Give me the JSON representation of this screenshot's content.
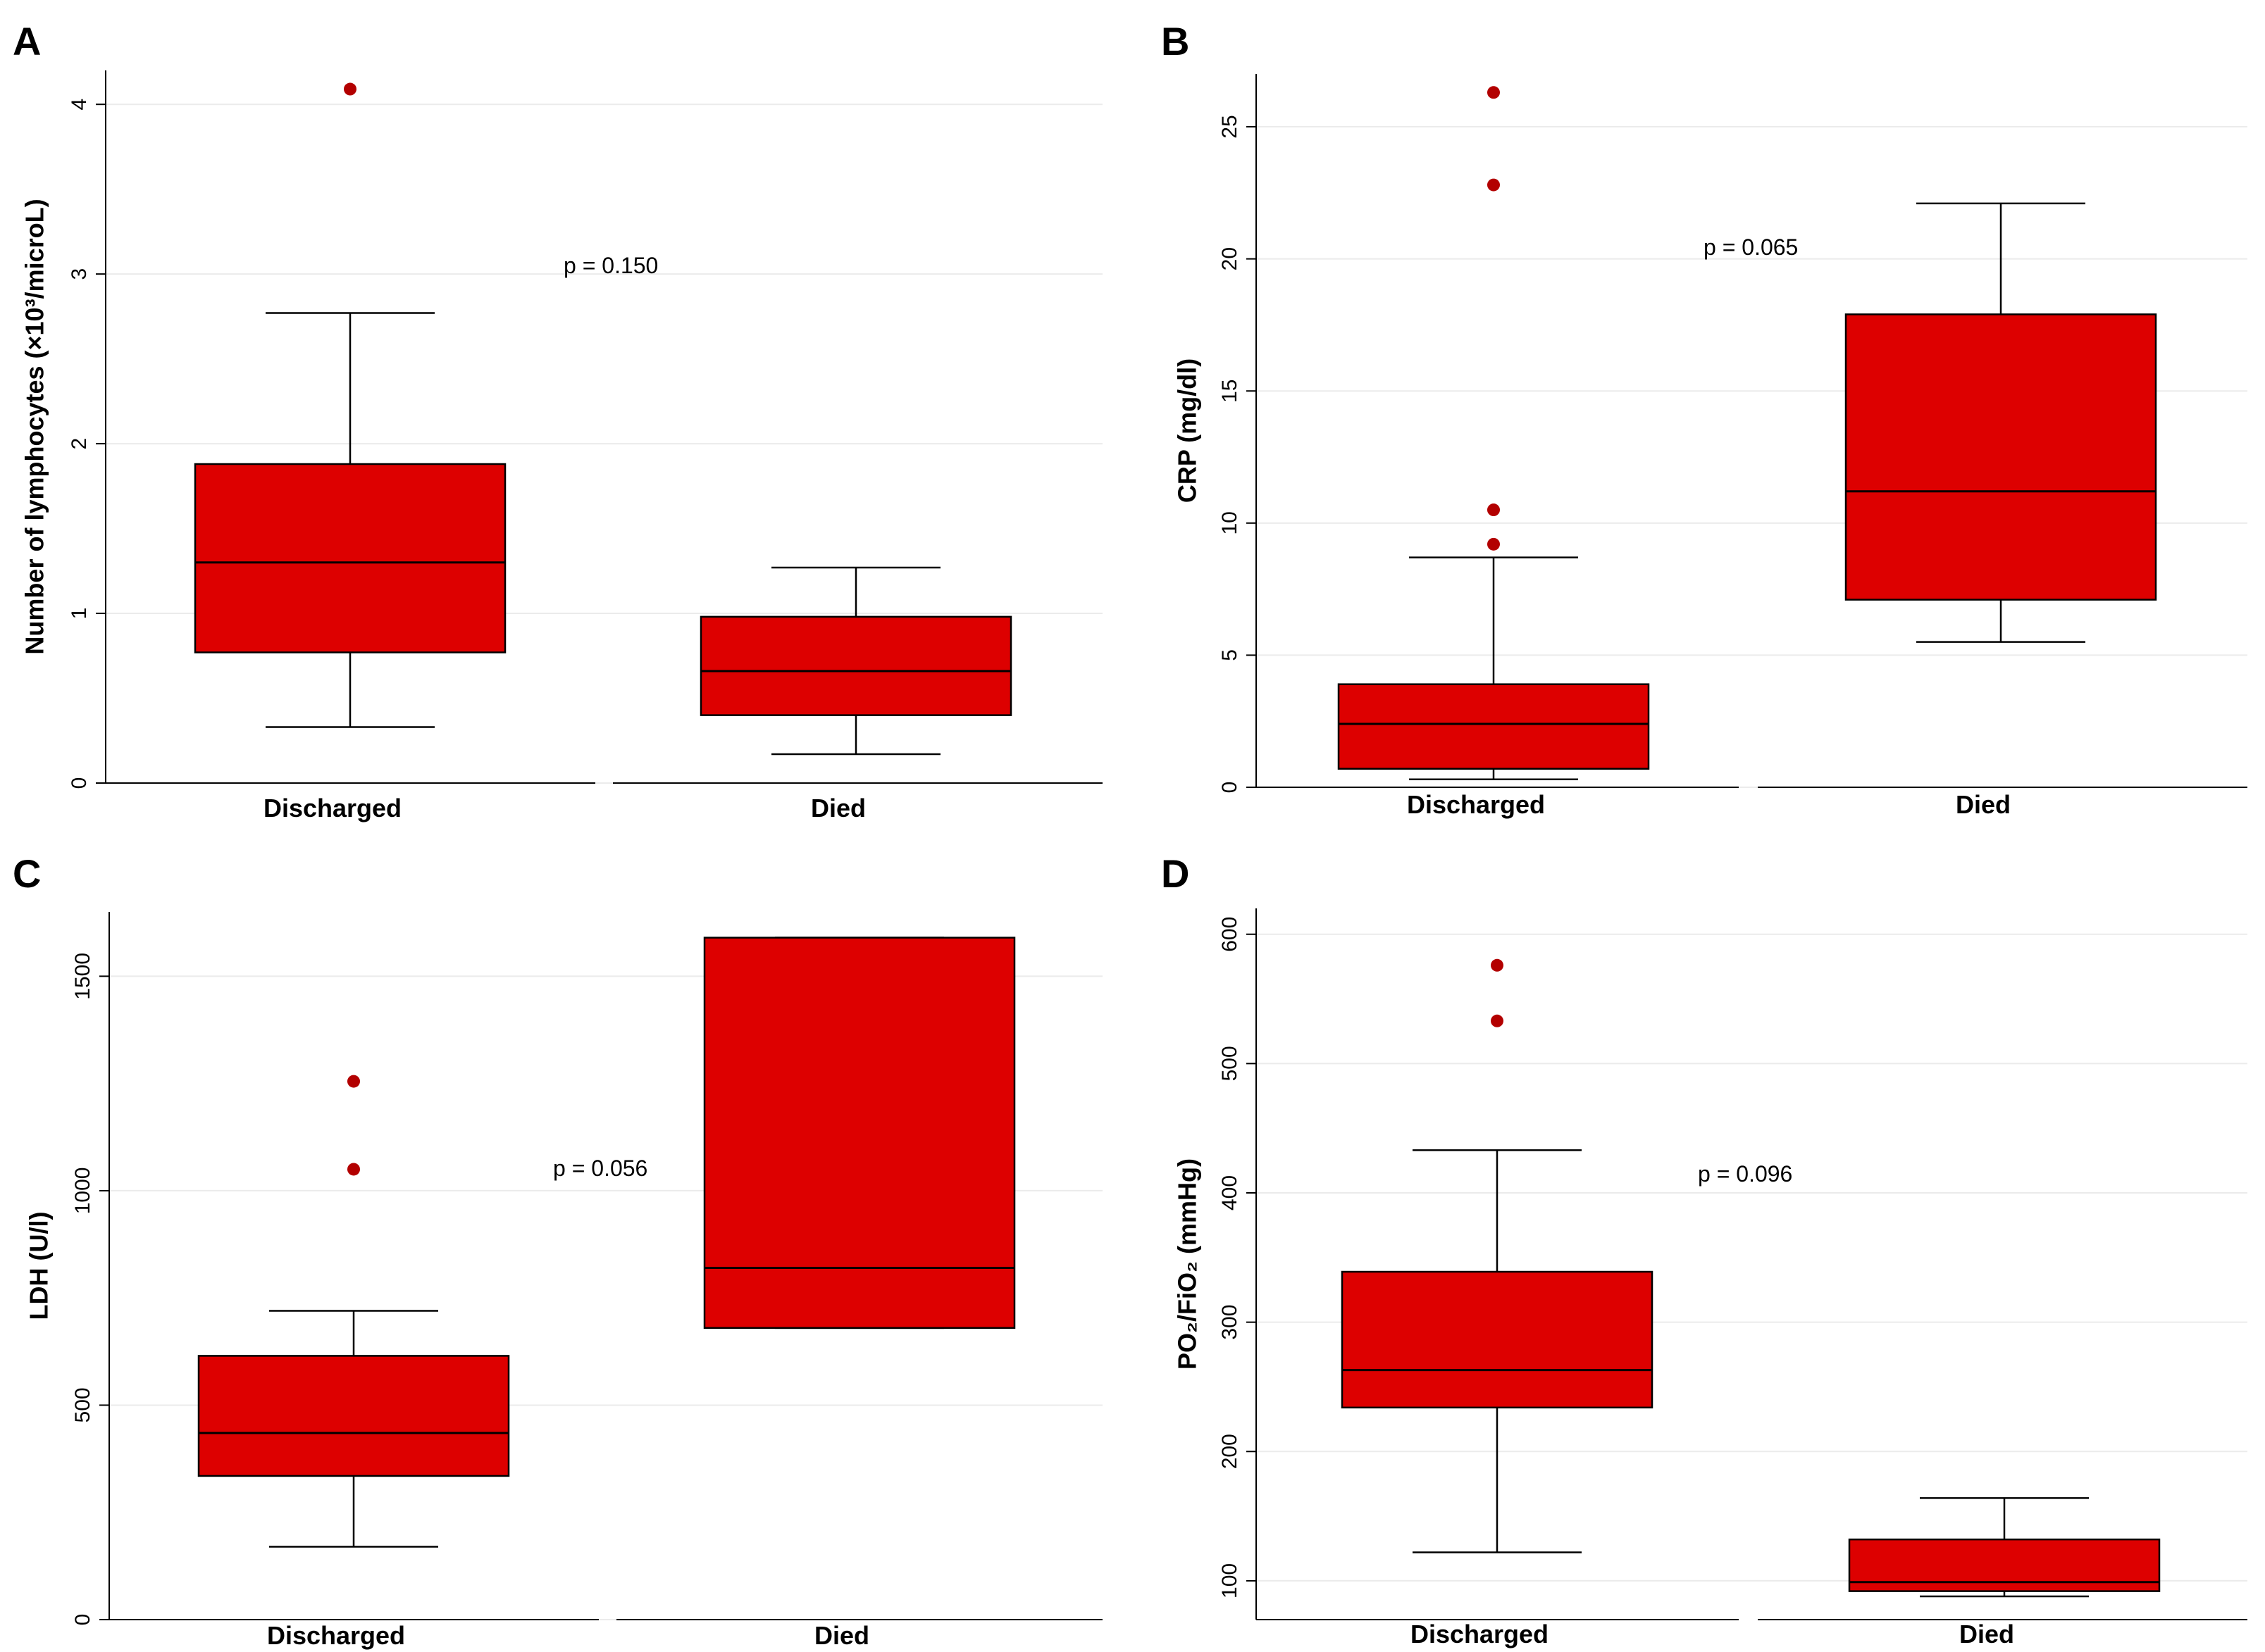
{
  "colors": {
    "box_fill": "#dd0000",
    "box_stroke": "#000000",
    "outlier": "#b30000",
    "grid": "#ebebeb",
    "axis": "#000000"
  },
  "chart_data": [
    {
      "id": "A",
      "type": "boxplot",
      "panel_label": "A",
      "ylabel": "Number of lymphocytes (×10³/microL)",
      "ylim": [
        0,
        4.2
      ],
      "yticks": [
        0,
        1,
        2,
        3,
        4
      ],
      "categories": [
        "Discharged",
        "Died"
      ],
      "boxes": [
        {
          "category": "Discharged",
          "whisker_low": 0.33,
          "q1": 0.77,
          "median": 1.3,
          "q3": 1.88,
          "whisker_high": 2.77,
          "outliers": [
            4.09
          ]
        },
        {
          "category": "Died",
          "whisker_low": 0.17,
          "q1": 0.4,
          "median": 0.66,
          "q3": 0.98,
          "whisker_high": 1.27,
          "outliers": []
        }
      ],
      "annotation": "p = 0.150"
    },
    {
      "id": "B",
      "type": "boxplot",
      "panel_label": "B",
      "ylabel": "CRP (mg/dl)",
      "ylim": [
        0,
        27
      ],
      "yticks": [
        0,
        5,
        10,
        15,
        20,
        25
      ],
      "categories": [
        "Discharged",
        "Died"
      ],
      "boxes": [
        {
          "category": "Discharged",
          "whisker_low": 0.3,
          "q1": 0.7,
          "median": 2.4,
          "q3": 3.9,
          "whisker_high": 8.7,
          "outliers": [
            9.2,
            10.5,
            22.8,
            26.3
          ]
        },
        {
          "category": "Died",
          "whisker_low": 5.5,
          "q1": 7.1,
          "median": 11.2,
          "q3": 17.9,
          "whisker_high": 22.1,
          "outliers": []
        }
      ],
      "annotation": "p = 0.065"
    },
    {
      "id": "C",
      "type": "boxplot",
      "panel_label": "C",
      "ylabel": "LDH (U/l)",
      "ylim": [
        0,
        1650
      ],
      "yticks": [
        0,
        500,
        1000,
        1500
      ],
      "categories": [
        "Discharged",
        "Died"
      ],
      "boxes": [
        {
          "category": "Discharged",
          "whisker_low": 170,
          "q1": 335,
          "median": 435,
          "q3": 615,
          "whisker_high": 720,
          "outliers": [
            1050,
            1255
          ]
        },
        {
          "category": "Died",
          "whisker_low": 680,
          "q1": 680,
          "median": 820,
          "q3": 1590,
          "whisker_high": 1590,
          "outliers": []
        }
      ],
      "annotation": "p = 0.056"
    },
    {
      "id": "D",
      "type": "boxplot",
      "panel_label": "D",
      "ylabel": "PO₂/FiO₂ (mmHg)",
      "ylim": [
        70,
        620
      ],
      "yticks": [
        100,
        200,
        300,
        400,
        500,
        600
      ],
      "categories": [
        "Discharged",
        "Died"
      ],
      "boxes": [
        {
          "category": "Discharged",
          "whisker_low": 122,
          "q1": 234,
          "median": 263,
          "q3": 339,
          "whisker_high": 433,
          "outliers": [
            533,
            576
          ]
        },
        {
          "category": "Died",
          "whisker_low": 88,
          "q1": 92,
          "median": 99,
          "q3": 132,
          "whisker_high": 164,
          "outliers": []
        }
      ],
      "annotation": "p = 0.096"
    }
  ]
}
